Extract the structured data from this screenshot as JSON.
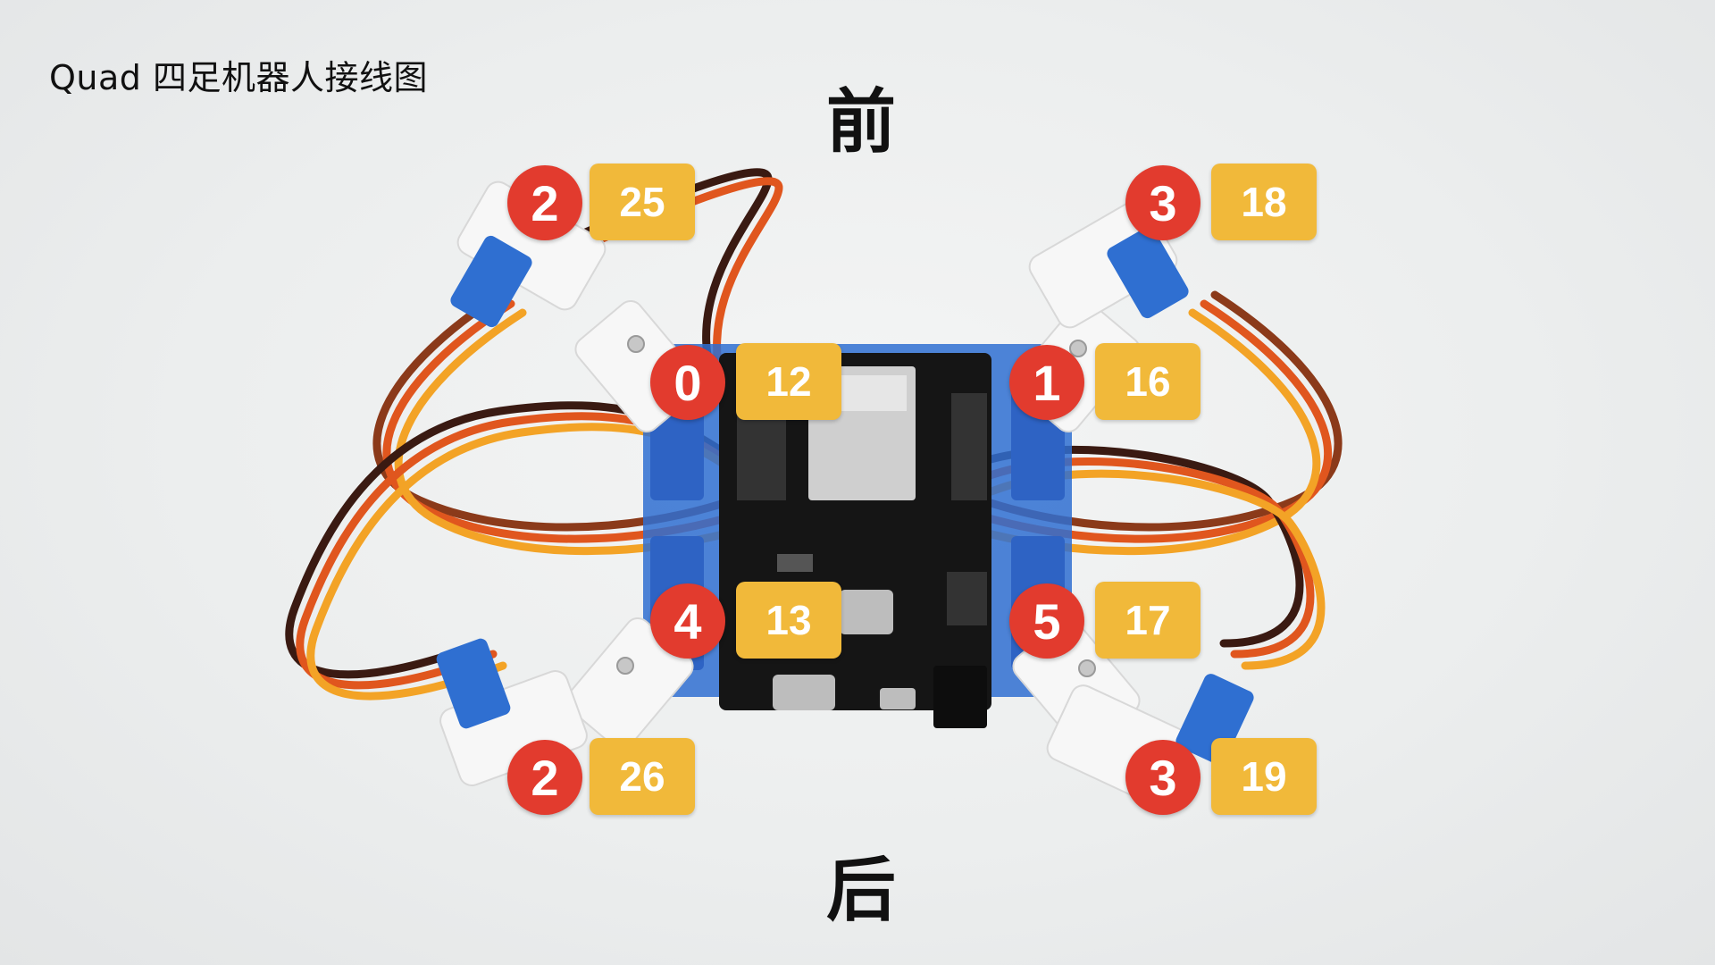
{
  "title": "Quad 四足机器人接线图",
  "directions": {
    "front": "前",
    "back": "后"
  },
  "servos": [
    {
      "id": "front-left-hip",
      "index": "2",
      "pin": "25"
    },
    {
      "id": "front-right-hip",
      "index": "3",
      "pin": "18"
    },
    {
      "id": "front-left-leg",
      "index": "0",
      "pin": "12"
    },
    {
      "id": "front-right-leg",
      "index": "1",
      "pin": "16"
    },
    {
      "id": "back-left-leg",
      "index": "4",
      "pin": "13"
    },
    {
      "id": "back-right-leg",
      "index": "5",
      "pin": "17"
    },
    {
      "id": "back-left-hip",
      "index": "2",
      "pin": "26"
    },
    {
      "id": "back-right-hip",
      "index": "3",
      "pin": "19"
    }
  ],
  "colors": {
    "badge": "#e23b2e",
    "pin": "#f1b93a",
    "board": "#151515",
    "servo": "#2f6fd1"
  }
}
